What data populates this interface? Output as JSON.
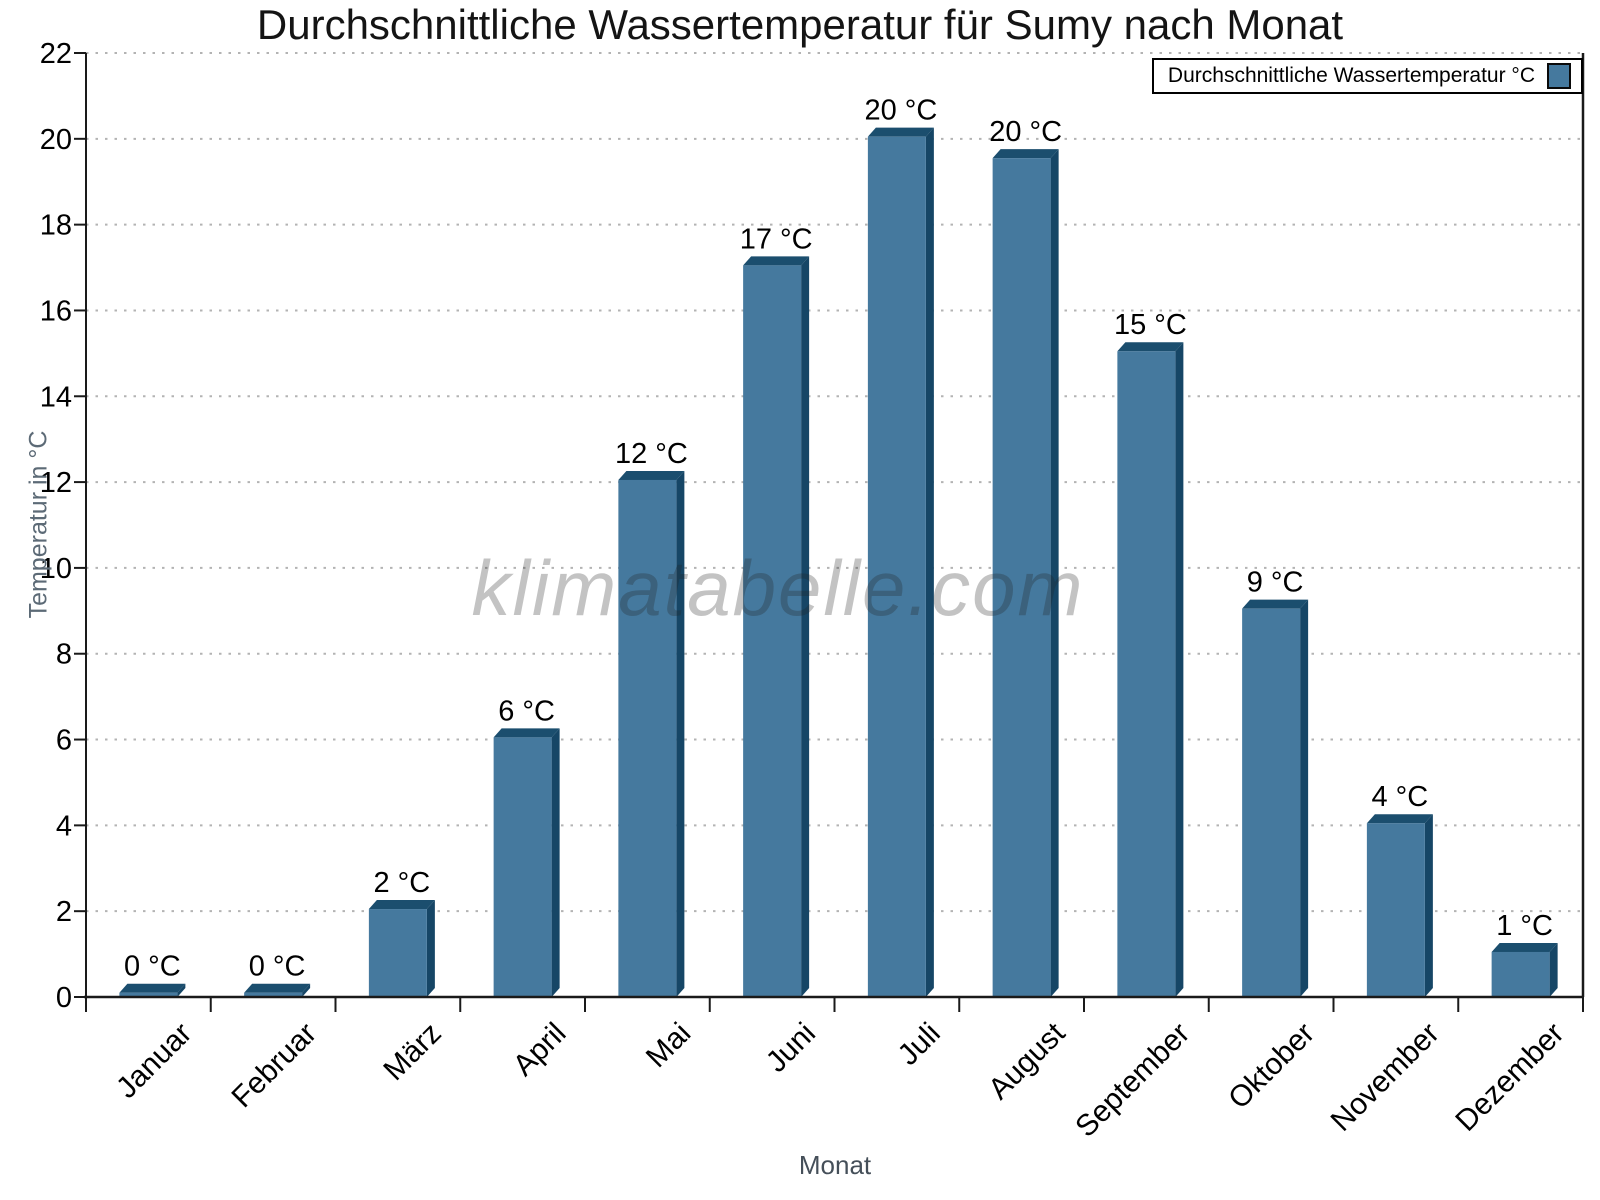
{
  "title": "Durchschnittliche Wassertemperatur für Sumy nach Monat",
  "legend": {
    "label": "Durchschnittliche Wassertemperatur °C",
    "swatch_color": "#45799E"
  },
  "watermark": "klimatabelle.com",
  "axes": {
    "x_title": "Monat",
    "y_title": "Temperatur in °C"
  },
  "chart_data": {
    "type": "bar",
    "title": "Durchschnittliche Wassertemperatur für Sumy nach Monat",
    "xlabel": "Monat",
    "ylabel": "Temperatur in °C",
    "categories": [
      "Januar",
      "Februar",
      "März",
      "April",
      "Mai",
      "Juni",
      "Juli",
      "August",
      "September",
      "Oktober",
      "November",
      "Dezember"
    ],
    "values": [
      0,
      0,
      2,
      6,
      12,
      17,
      20,
      20,
      15,
      9,
      4,
      1
    ],
    "value_labels": [
      "0 °C",
      "0 °C",
      "2 °C",
      "6 °C",
      "12 °C",
      "17 °C",
      "20 °C",
      "20 °C",
      "15 °C",
      "9 °C",
      "4 °C",
      "1 °C"
    ],
    "display_heights": [
      0.1,
      0.1,
      2.05,
      6.05,
      12.05,
      17.05,
      20.05,
      19.55,
      15.05,
      9.05,
      4.05,
      1.05
    ],
    "ylim": [
      0,
      22
    ],
    "yticks": [
      0,
      2,
      4,
      6,
      8,
      10,
      12,
      14,
      16,
      18,
      20,
      22
    ],
    "legend_entry": "Durchschnittliche Wassertemperatur °C",
    "legend_position": "top-right",
    "grid": "horizontal-dashed",
    "style": "3d-extruded-bars",
    "colors": {
      "bar_face": "#45799E",
      "bar_top": "#1B4E6E",
      "bar_side": "#164666",
      "grid": "#b3b3b3",
      "axis": "#1a1a1a",
      "tick_label": "#000000",
      "axis_title": "#5c6a76",
      "watermark": "rgba(35,35,35,0.27)"
    }
  }
}
